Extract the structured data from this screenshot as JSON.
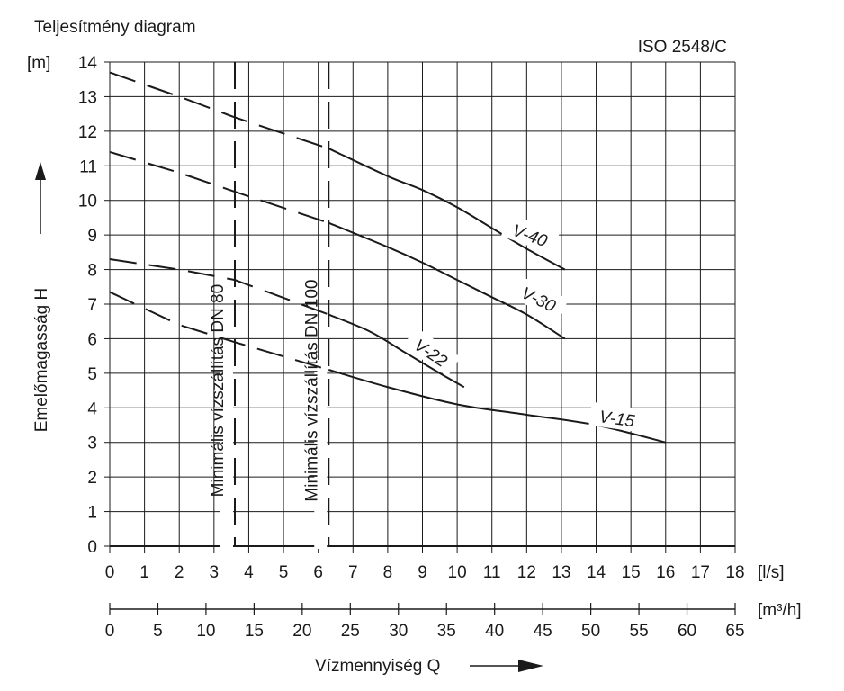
{
  "chart_data": {
    "type": "line",
    "title": "Teljesítmény diagram",
    "standard": "ISO 2548/C",
    "ylabel": "Emelőmagasság H",
    "yunit": "[m]",
    "xlabel": "Vízmennyiség Q",
    "xunit_primary": "[l/s]",
    "xunit_secondary": "[m³/h]",
    "xlim": [
      0,
      18
    ],
    "ylim": [
      0,
      14
    ],
    "x_secondary_lim": [
      0,
      65
    ],
    "x_ticks": [
      0,
      1,
      2,
      3,
      4,
      5,
      6,
      7,
      8,
      9,
      10,
      11,
      12,
      13,
      14,
      15,
      16,
      17,
      18
    ],
    "y_ticks": [
      0,
      1,
      2,
      3,
      4,
      5,
      6,
      7,
      8,
      9,
      10,
      11,
      12,
      13,
      14
    ],
    "x_secondary_ticks": [
      0,
      5,
      10,
      15,
      20,
      25,
      30,
      35,
      40,
      45,
      50,
      55,
      60,
      65
    ],
    "grid": true,
    "reference_lines": [
      {
        "label": "Minimális vízszállítás DN 80",
        "x": 3.6
      },
      {
        "label": "Minimális vízszállítás DN 100",
        "x": 6.3
      }
    ],
    "series": [
      {
        "name": "V-40",
        "dashed_until": 6.3,
        "x": [
          0,
          2,
          3.6,
          6.3,
          8,
          9,
          10,
          11,
          12,
          13.1
        ],
        "y": [
          13.7,
          13.0,
          12.4,
          11.5,
          10.7,
          10.3,
          9.8,
          9.2,
          8.6,
          8.0
        ]
      },
      {
        "name": "V-30",
        "dashed_until": 6.3,
        "x": [
          0,
          2,
          3.6,
          6.3,
          8,
          9,
          10,
          11,
          12,
          13.1
        ],
        "y": [
          11.4,
          10.8,
          10.25,
          9.35,
          8.65,
          8.2,
          7.7,
          7.2,
          6.7,
          6.0
        ]
      },
      {
        "name": "V-22",
        "dashed_until": 6.3,
        "x": [
          0,
          2,
          3.6,
          6.3,
          7.5,
          8.5,
          9.5,
          10.2
        ],
        "y": [
          8.3,
          8.0,
          7.7,
          6.7,
          6.2,
          5.6,
          5.0,
          4.6
        ]
      },
      {
        "name": "V-15",
        "dashed_until": 6.3,
        "x": [
          0,
          2,
          3.6,
          6.3,
          8,
          10,
          12,
          14,
          16
        ],
        "y": [
          7.35,
          6.4,
          5.9,
          5.1,
          4.6,
          4.1,
          3.8,
          3.5,
          3.0
        ]
      }
    ],
    "series_labels": [
      {
        "name": "V-40",
        "x": 12.1,
        "y": 9.0,
        "angle": 20
      },
      {
        "name": "V-30",
        "x": 12.35,
        "y": 7.15,
        "angle": 26
      },
      {
        "name": "V-22",
        "x": 9.25,
        "y": 5.6,
        "angle": 34
      },
      {
        "name": "V-15",
        "x": 14.6,
        "y": 3.7,
        "angle": 8
      }
    ]
  }
}
